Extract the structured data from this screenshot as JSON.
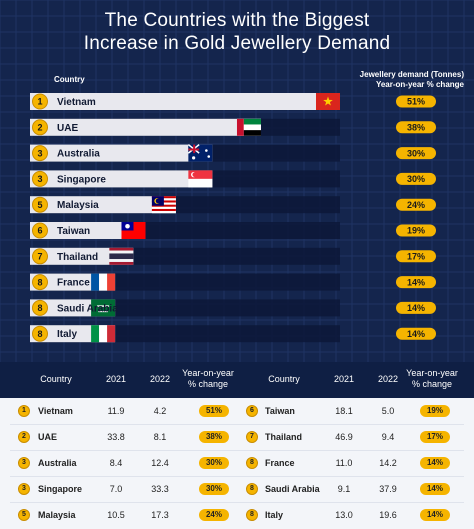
{
  "title_line1": "The Countries with the Biggest",
  "title_line2": "Increase in Gold Jewellery Demand",
  "header_country": "Country",
  "header_demand": "Jewellery demand (Tonnes)",
  "header_yoy": "Year-on-year % change",
  "colors": {
    "background": "#14254d",
    "bar": "#e8e8ee",
    "gold": "#f5b400",
    "table_bg": "#f3f5f9"
  },
  "chart_data": {
    "type": "bar",
    "title": "The Countries with the Biggest Increase in Gold Jewellery Demand",
    "orientation": "horizontal",
    "categories": [
      "Vietnam",
      "UAE",
      "Australia",
      "Singapore",
      "Malaysia",
      "Taiwan",
      "Thailand",
      "France",
      "Saudi Arabia",
      "Italy"
    ],
    "ranks": [
      "1",
      "2",
      "3",
      "3",
      "5",
      "6",
      "7",
      "8",
      "8",
      "8"
    ],
    "values": [
      4.2,
      8.1,
      12.4,
      33.3,
      17.3,
      5.0,
      9.4,
      14.2,
      37.9,
      19.6
    ],
    "yoy_labels": [
      "51%",
      "38%",
      "30%",
      "30%",
      "24%",
      "19%",
      "17%",
      "14%",
      "14%",
      "14%"
    ],
    "yoy_values": [
      51,
      38,
      30,
      30,
      24,
      19,
      17,
      14,
      14,
      14
    ],
    "flags": [
      "vietnam-flag",
      "uae-flag",
      "australia-flag",
      "singapore-flag",
      "malaysia-flag",
      "taiwan-flag",
      "thailand-flag",
      "france-flag",
      "saudi-arabia-flag",
      "italy-flag"
    ]
  },
  "table": {
    "headers": [
      "Country",
      "2021",
      "2022",
      "Year-on-year",
      "% change"
    ],
    "left_rows": [
      {
        "rank": "1",
        "country": "Vietnam",
        "y2021": "11.9",
        "y2022": "4.2",
        "pct": "51%"
      },
      {
        "rank": "2",
        "country": "UAE",
        "y2021": "33.8",
        "y2022": "8.1",
        "pct": "38%"
      },
      {
        "rank": "3",
        "country": "Australia",
        "y2021": "8.4",
        "y2022": "12.4",
        "pct": "30%"
      },
      {
        "rank": "3",
        "country": "Singapore",
        "y2021": "7.0",
        "y2022": "33.3",
        "pct": "30%"
      },
      {
        "rank": "5",
        "country": "Malaysia",
        "y2021": "10.5",
        "y2022": "17.3",
        "pct": "24%"
      }
    ],
    "right_rows": [
      {
        "rank": "6",
        "country": "Taiwan",
        "y2021": "18.1",
        "y2022": "5.0",
        "pct": "19%"
      },
      {
        "rank": "7",
        "country": "Thailand",
        "y2021": "46.9",
        "y2022": "9.4",
        "pct": "17%"
      },
      {
        "rank": "8",
        "country": "France",
        "y2021": "11.0",
        "y2022": "14.2",
        "pct": "14%"
      },
      {
        "rank": "8",
        "country": "Saudi Arabia",
        "y2021": "9.1",
        "y2022": "37.9",
        "pct": "14%"
      },
      {
        "rank": "8",
        "country": "Italy",
        "y2021": "13.0",
        "y2022": "19.6",
        "pct": "14%"
      }
    ]
  }
}
